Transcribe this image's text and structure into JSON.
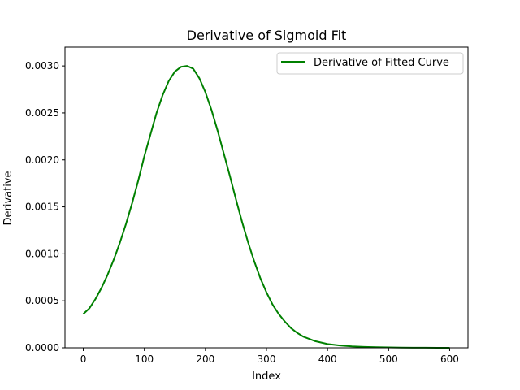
{
  "chart_data": {
    "type": "line",
    "title": "Derivative of Sigmoid Fit",
    "xlabel": "Index",
    "ylabel": "Derivative",
    "xlim": [
      -30,
      630
    ],
    "ylim": [
      0,
      0.0032
    ],
    "xticks": [
      0,
      100,
      200,
      300,
      400,
      500,
      600
    ],
    "xtick_labels": [
      "0",
      "100",
      "200",
      "300",
      "400",
      "500",
      "600"
    ],
    "yticks": [
      0,
      0.0005,
      0.001,
      0.0015,
      0.002,
      0.0025,
      0.003
    ],
    "ytick_labels": [
      "0.0000",
      "0.0005",
      "0.0010",
      "0.0015",
      "0.0020",
      "0.0025",
      "0.0030"
    ],
    "grid": false,
    "legend": {
      "position": "upper-right"
    },
    "series": [
      {
        "name": "Derivative of Fitted Curve",
        "color": "#008000",
        "x": [
          0,
          10,
          20,
          30,
          40,
          50,
          60,
          70,
          80,
          90,
          100,
          110,
          120,
          130,
          140,
          150,
          160,
          170,
          180,
          190,
          200,
          210,
          220,
          230,
          240,
          250,
          260,
          270,
          280,
          290,
          300,
          310,
          320,
          330,
          340,
          350,
          360,
          380,
          400,
          420,
          440,
          460,
          480,
          500,
          520,
          540,
          560,
          580,
          600
        ],
        "y": [
          0.00036,
          0.00042,
          0.00052,
          0.00064,
          0.00078,
          0.00094,
          0.00112,
          0.00132,
          0.00154,
          0.00178,
          0.00204,
          0.00227,
          0.0025,
          0.00269,
          0.00284,
          0.00294,
          0.00299,
          0.003,
          0.00297,
          0.00287,
          0.00272,
          0.00253,
          0.00231,
          0.00207,
          0.00183,
          0.00158,
          0.00134,
          0.00112,
          0.00092,
          0.00074,
          0.00059,
          0.00046,
          0.00036,
          0.00028,
          0.00021,
          0.00016,
          0.00012,
          7e-05,
          4e-05,
          2.5e-05,
          1.5e-05,
          1e-05,
          6e-06,
          4e-06,
          2.5e-06,
          1.5e-06,
          1e-06,
          5e-07,
          3e-07
        ]
      }
    ]
  }
}
